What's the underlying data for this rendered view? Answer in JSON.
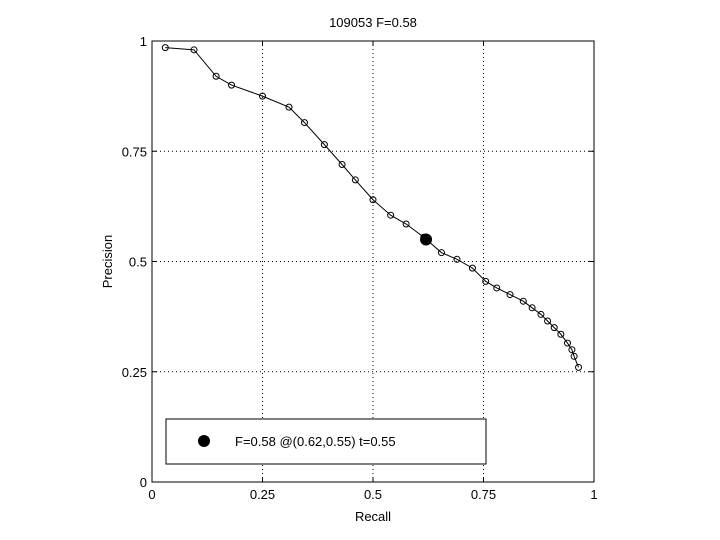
{
  "chart_data": {
    "type": "line",
    "title": "109053 F=0.58",
    "xlabel": "Recall",
    "ylabel": "Precision",
    "xlim": [
      0,
      1
    ],
    "ylim": [
      0,
      1
    ],
    "grid": true,
    "grid_style": "dotted",
    "xticks": [
      0,
      0.25,
      0.5,
      0.75,
      1
    ],
    "xtick_labels": [
      "0",
      "0.25",
      "0.5",
      "0.75",
      "1"
    ],
    "yticks": [
      0,
      0.25,
      0.5,
      0.75,
      1
    ],
    "ytick_labels": [
      "0",
      "0.25",
      "0.5",
      "0.75",
      "1"
    ],
    "series": [
      {
        "marker": "open-circle",
        "x": [
          0.03,
          0.095,
          0.145,
          0.18,
          0.25,
          0.31,
          0.345,
          0.39,
          0.43,
          0.46,
          0.5,
          0.54,
          0.575,
          0.615,
          0.655,
          0.69,
          0.725,
          0.755,
          0.78,
          0.81,
          0.84,
          0.86,
          0.88,
          0.895,
          0.91,
          0.925,
          0.94,
          0.95,
          0.955,
          0.965
        ],
        "y": [
          0.985,
          0.98,
          0.92,
          0.9,
          0.875,
          0.85,
          0.815,
          0.765,
          0.72,
          0.685,
          0.64,
          0.605,
          0.585,
          0.555,
          0.52,
          0.505,
          0.485,
          0.455,
          0.44,
          0.425,
          0.41,
          0.395,
          0.38,
          0.365,
          0.35,
          0.335,
          0.315,
          0.3,
          0.285,
          0.26
        ]
      }
    ],
    "highlight_point": {
      "x": 0.62,
      "y": 0.55,
      "marker": "filled-circle"
    },
    "legend": {
      "placement": "bottom-left",
      "entries": [
        {
          "label": "F=0.58 @(0.62,0.55) t=0.55",
          "marker": "filled-circle"
        }
      ]
    },
    "colors": {
      "line": "#000000",
      "background": "#ffffff",
      "grid": "#000000"
    }
  }
}
